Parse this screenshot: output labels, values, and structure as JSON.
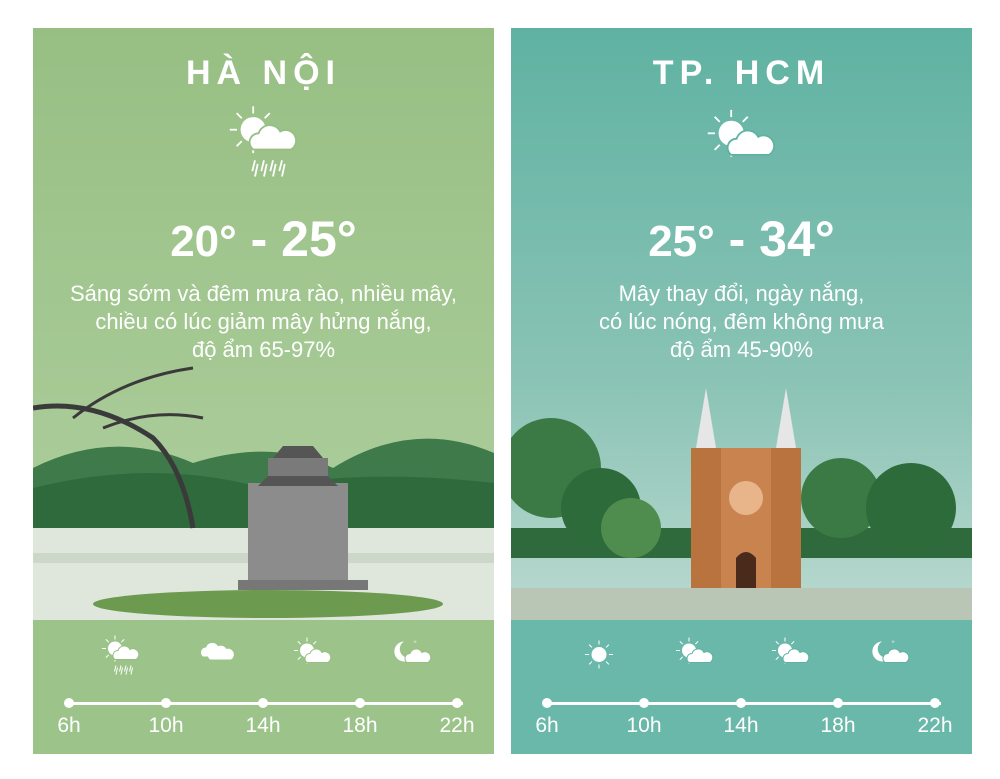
{
  "colors": {
    "hanoi_bg": "#97bf83",
    "hcm_bg": "#5fb2a2",
    "text": "#ffffff"
  },
  "times": [
    "6h",
    "10h",
    "14h",
    "18h",
    " 22h"
  ],
  "cities": [
    {
      "name": "HÀ NỘI",
      "main_icon": "sun-cloud-rain-icon",
      "temp_low": "20°",
      "temp_sep": " - ",
      "temp_high": "25°",
      "desc": [
        "Sáng sớm và đêm mưa rào, nhiều mây,",
        "chiều có lúc giảm mây hửng nắng,",
        "độ ẩm 65-97%"
      ],
      "hourly_icons": [
        "sun-cloud-rain-icon",
        "cloud-icon",
        "sun-cloud-icon",
        "moon-cloud-icon"
      ]
    },
    {
      "name": "TP. HCM",
      "main_icon": "sun-cloud-icon",
      "temp_low": "25°",
      "temp_sep": " - ",
      "temp_high": "34°",
      "desc": [
        "Mây thay đổi, ngày nắng,",
        "có lúc nóng, đêm không mưa",
        "độ ẩm 45-90%"
      ],
      "hourly_icons": [
        "sun-icon",
        "sun-cloud-icon",
        "sun-cloud-icon",
        "moon-cloud-icon"
      ]
    }
  ]
}
